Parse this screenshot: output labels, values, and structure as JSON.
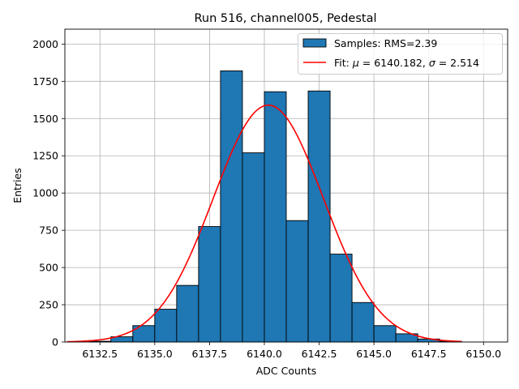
{
  "chart_data": {
    "type": "bar",
    "title": "Run 516, channel005, Pedestal",
    "xlabel": "ADC Counts",
    "ylabel": "Entries",
    "xlim": [
      6130.9,
      6151.1
    ],
    "ylim": [
      0,
      2100
    ],
    "grid": true,
    "legend_position": "top-right",
    "x_ticks": [
      6132.5,
      6135.0,
      6137.5,
      6140.0,
      6142.5,
      6145.0,
      6147.5,
      6150.0
    ],
    "x_tick_labels": [
      "6132.5",
      "6135.0",
      "6137.5",
      "6140.0",
      "6142.5",
      "6145.0",
      "6147.5",
      "6150.0"
    ],
    "y_ticks": [
      0,
      250,
      500,
      750,
      1000,
      1250,
      1500,
      1750,
      2000
    ],
    "y_tick_labels": [
      "0",
      "250",
      "500",
      "750",
      "1000",
      "1250",
      "1500",
      "1750",
      "2000"
    ],
    "histogram": {
      "legend_label": "Samples: RMS=2.39",
      "color": "#1f77b4",
      "edge_color": "#000000",
      "bin_edges": [
        6131,
        6132,
        6133,
        6134,
        6135,
        6136,
        6137,
        6138,
        6139,
        6140,
        6141,
        6142,
        6143,
        6144,
        6145,
        6146,
        6147,
        6148,
        6149,
        6150,
        6151
      ],
      "counts": [
        0,
        5,
        35,
        110,
        220,
        380,
        775,
        1820,
        1270,
        1680,
        815,
        1685,
        590,
        265,
        110,
        55,
        20,
        5,
        0,
        0
      ]
    },
    "fit": {
      "legend_label_prefix": "Fit: ",
      "legend_label_mu": "μ",
      "legend_label_mu_value": " = 6140.182, ",
      "legend_label_sigma": "σ",
      "legend_label_sigma_value": " = 2.514",
      "color": "#ff0000",
      "mu": 6140.182,
      "sigma": 2.514,
      "amplitude": 1590,
      "x_range": [
        6131,
        6149
      ]
    }
  }
}
